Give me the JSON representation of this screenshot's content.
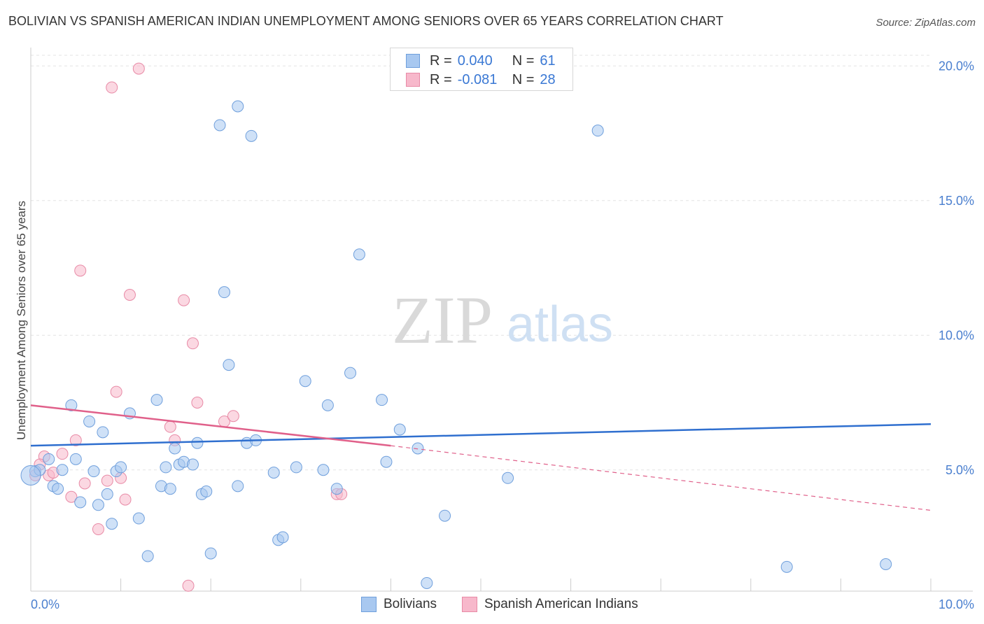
{
  "title": "BOLIVIAN VS SPANISH AMERICAN INDIAN UNEMPLOYMENT AMONG SENIORS OVER 65 YEARS CORRELATION CHART",
  "source": "Source: ZipAtlas.com",
  "watermark": {
    "zip": "ZIP",
    "atlas": "atlas"
  },
  "colors": {
    "bolivians_fill": "#a8c8f0",
    "bolivians_stroke": "#6f9fdc",
    "bolivians_line": "#2f6fcf",
    "spanish_fill": "#f7b8cb",
    "spanish_stroke": "#e88aa6",
    "spanish_line": "#e0608a",
    "tick_text": "#4a7fcf",
    "grid": "#e3e3e3"
  },
  "legend": {
    "rows": [
      {
        "r_label": "R =",
        "r_value": "0.040",
        "n_label": "N =",
        "n_value": "61"
      },
      {
        "r_label": "R =",
        "r_value": "-0.081",
        "n_label": "N =",
        "n_value": "28"
      }
    ],
    "bottom": [
      "Bolivians",
      "Spanish American Indians"
    ]
  },
  "chart_data": {
    "type": "scatter",
    "title": "BOLIVIAN VS SPANISH AMERICAN INDIAN UNEMPLOYMENT AMONG SENIORS OVER 65 YEARS CORRELATION CHART",
    "xlabel": "",
    "ylabel": "Unemployment Among Seniors over 65 years",
    "x_tick_labels": [
      "0.0%",
      "10.0%"
    ],
    "y_tick_labels": [
      "5.0%",
      "10.0%",
      "15.0%",
      "20.0%"
    ],
    "y_ticks": [
      5,
      10,
      15,
      20
    ],
    "xlim": [
      0,
      10
    ],
    "ylim": [
      0.5,
      20.5
    ],
    "grid": true,
    "legend_position": "top-center",
    "series": [
      {
        "name": "Bolivians",
        "r": 0.04,
        "n": 61,
        "trend": {
          "x": [
            0,
            10
          ],
          "y": [
            5.9,
            6.7
          ],
          "dashed_extension": false
        },
        "points": [
          [
            0.05,
            4.95
          ],
          [
            0.1,
            5.0
          ],
          [
            0.2,
            5.4
          ],
          [
            0.25,
            4.4
          ],
          [
            0.3,
            4.3
          ],
          [
            0.35,
            5.0
          ],
          [
            0.45,
            7.4
          ],
          [
            0.5,
            5.4
          ],
          [
            0.55,
            3.8
          ],
          [
            0.65,
            6.8
          ],
          [
            0.7,
            4.95
          ],
          [
            0.75,
            3.7
          ],
          [
            0.8,
            6.4
          ],
          [
            0.85,
            4.1
          ],
          [
            0.9,
            3.0
          ],
          [
            0.95,
            4.95
          ],
          [
            1.0,
            5.1
          ],
          [
            1.1,
            7.1
          ],
          [
            1.2,
            3.2
          ],
          [
            1.3,
            1.8
          ],
          [
            1.4,
            7.6
          ],
          [
            1.45,
            4.4
          ],
          [
            1.5,
            5.1
          ],
          [
            1.55,
            4.3
          ],
          [
            1.6,
            5.8
          ],
          [
            1.65,
            5.2
          ],
          [
            1.7,
            5.3
          ],
          [
            1.8,
            5.2
          ],
          [
            1.85,
            6.0
          ],
          [
            1.9,
            4.1
          ],
          [
            1.95,
            4.2
          ],
          [
            2.0,
            1.9
          ],
          [
            2.1,
            17.8
          ],
          [
            2.15,
            11.6
          ],
          [
            2.2,
            8.9
          ],
          [
            2.3,
            4.4
          ],
          [
            2.3,
            18.5
          ],
          [
            2.4,
            6.0
          ],
          [
            2.45,
            17.4
          ],
          [
            2.5,
            6.1
          ],
          [
            2.7,
            4.9
          ],
          [
            2.75,
            2.4
          ],
          [
            2.8,
            2.5
          ],
          [
            2.95,
            5.1
          ],
          [
            3.05,
            8.3
          ],
          [
            3.25,
            5.0
          ],
          [
            3.3,
            7.4
          ],
          [
            3.4,
            4.3
          ],
          [
            3.55,
            8.6
          ],
          [
            3.65,
            13.0
          ],
          [
            3.9,
            7.6
          ],
          [
            3.95,
            5.3
          ],
          [
            4.1,
            6.5
          ],
          [
            4.3,
            5.8
          ],
          [
            4.4,
            0.8
          ],
          [
            4.6,
            3.3
          ],
          [
            5.3,
            4.7
          ],
          [
            6.3,
            17.6
          ],
          [
            8.4,
            1.4
          ],
          [
            9.5,
            1.5
          ],
          [
            0.0,
            4.8
          ]
        ]
      },
      {
        "name": "Spanish American Indians",
        "r": -0.081,
        "n": 28,
        "trend": {
          "x": [
            0,
            4.0
          ],
          "y": [
            7.4,
            5.9
          ],
          "dashed_extension": true,
          "extension_x": [
            4.0,
            10
          ],
          "extension_y": [
            5.9,
            3.5
          ]
        },
        "points": [
          [
            0.05,
            4.8
          ],
          [
            0.15,
            5.5
          ],
          [
            0.2,
            4.8
          ],
          [
            0.25,
            4.9
          ],
          [
            0.35,
            5.6
          ],
          [
            0.45,
            4.0
          ],
          [
            0.5,
            6.1
          ],
          [
            0.55,
            12.4
          ],
          [
            0.6,
            4.5
          ],
          [
            0.75,
            2.8
          ],
          [
            0.85,
            4.6
          ],
          [
            0.9,
            19.2
          ],
          [
            0.95,
            7.9
          ],
          [
            1.0,
            4.7
          ],
          [
            1.05,
            3.9
          ],
          [
            1.1,
            11.5
          ],
          [
            1.2,
            19.9
          ],
          [
            1.55,
            6.6
          ],
          [
            1.6,
            6.1
          ],
          [
            1.7,
            11.3
          ],
          [
            1.75,
            0.7
          ],
          [
            1.8,
            9.7
          ],
          [
            1.85,
            7.5
          ],
          [
            2.15,
            6.8
          ],
          [
            2.25,
            7.0
          ],
          [
            3.4,
            4.1
          ],
          [
            3.45,
            4.1
          ],
          [
            0.1,
            5.2
          ]
        ]
      }
    ]
  }
}
